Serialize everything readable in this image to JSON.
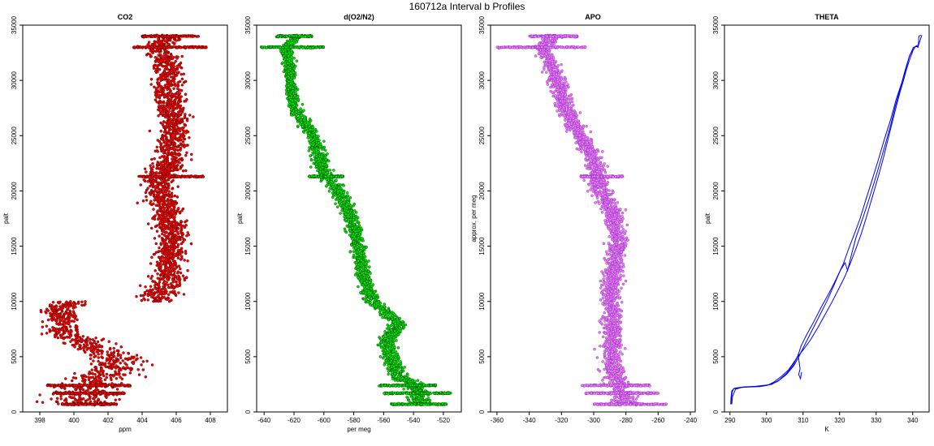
{
  "figure": {
    "title": "160712a   Interval b Profiles"
  },
  "chart_data": [
    {
      "type": "scatter",
      "title": "CO2",
      "xlabel": "ppm",
      "ylabel": "palt",
      "xlim": [
        397,
        409
      ],
      "ylim": [
        0,
        35000
      ],
      "xticks": [
        398,
        400,
        402,
        404,
        406,
        408
      ],
      "yticks": [
        0,
        5000,
        10000,
        15000,
        20000,
        25000,
        30000,
        35000
      ],
      "color": "#ff0000",
      "edge_color": "#5a0000",
      "series": [
        {
          "profile": [
            [
              400.2,
              700
            ],
            [
              400.5,
              1500
            ],
            [
              400.8,
              2200
            ],
            [
              401.5,
              3000
            ],
            [
              402.2,
              4000
            ],
            [
              402.5,
              5000
            ],
            [
              401.5,
              5500
            ],
            [
              400.5,
              6500
            ],
            [
              399.2,
              7200
            ],
            [
              399.5,
              8000
            ],
            [
              399.2,
              9200
            ],
            [
              399.8,
              10000
            ],
            [
              404.8,
              10000
            ],
            [
              405.5,
              12000
            ],
            [
              405.6,
              14000
            ],
            [
              405.8,
              16000
            ],
            [
              405.5,
              18000
            ],
            [
              405,
              20000
            ],
            [
              405.3,
              21300
            ],
            [
              405.5,
              22500
            ],
            [
              405.8,
              24500
            ],
            [
              405.9,
              26500
            ],
            [
              405.6,
              28500
            ],
            [
              405.5,
              30500
            ],
            [
              405.4,
              32000
            ],
            [
              405,
              33000
            ],
            [
              405.5,
              34000
            ]
          ],
          "spread": [
            [
              0,
              3.0
            ],
            [
              5000,
              2.0
            ],
            [
              8000,
              1.6
            ],
            [
              10000,
              1.4
            ],
            [
              15000,
              1.2
            ],
            [
              20000,
              1.3
            ],
            [
              25000,
              1.3
            ],
            [
              30000,
              1.2
            ],
            [
              34000,
              1.2
            ]
          ],
          "spikes": [
            {
              "y": 700,
              "x": [
                399.3,
                402.5
              ]
            },
            {
              "y": 1700,
              "x": [
                398.7,
                403.0
              ]
            },
            {
              "y": 2400,
              "x": [
                398.4,
                403.3
              ]
            },
            {
              "y": 21300,
              "x": [
                403.8,
                407.6
              ]
            },
            {
              "y": 33000,
              "x": [
                403.5,
                407.8
              ]
            },
            {
              "y": 34000,
              "x": [
                404.0,
                407.3
              ]
            }
          ]
        }
      ]
    },
    {
      "type": "scatter",
      "title": "d(O2/N2)",
      "xlabel": "per meg",
      "ylabel": "palt",
      "xlim": [
        -645,
        -508
      ],
      "ylim": [
        0,
        35000
      ],
      "xticks": [
        -640,
        -620,
        -600,
        -580,
        -560,
        -540,
        -520
      ],
      "yticks": [
        0,
        5000,
        10000,
        15000,
        20000,
        25000,
        30000,
        35000
      ],
      "color": "#00ee00",
      "edge_color": "#004d00",
      "series": [
        {
          "profile": [
            [
              -535,
              700
            ],
            [
              -537,
              1500
            ],
            [
              -540,
              2500
            ],
            [
              -552,
              3500
            ],
            [
              -555,
              5000
            ],
            [
              -558,
              6500
            ],
            [
              -550,
              8000
            ],
            [
              -568,
              10000
            ],
            [
              -574,
              12500
            ],
            [
              -577,
              15000
            ],
            [
              -583,
              18000
            ],
            [
              -590,
              20000
            ],
            [
              -600,
              21500
            ],
            [
              -603,
              23000
            ],
            [
              -607,
              25000
            ],
            [
              -620,
              27500
            ],
            [
              -622,
              29500
            ],
            [
              -623,
              31000
            ],
            [
              -625,
              33000
            ],
            [
              -618,
              34000
            ]
          ],
          "spread": [
            [
              0,
              10
            ],
            [
              5000,
              8
            ],
            [
              10000,
              7
            ],
            [
              15000,
              6
            ],
            [
              20000,
              7
            ],
            [
              25000,
              7
            ],
            [
              30000,
              5
            ],
            [
              34000,
              5
            ]
          ],
          "spikes": [
            {
              "y": 700,
              "x": [
                -555,
                -518
              ]
            },
            {
              "y": 1700,
              "x": [
                -560,
                -515
              ]
            },
            {
              "y": 2400,
              "x": [
                -563,
                -525
              ]
            },
            {
              "y": 21300,
              "x": [
                -610,
                -587
              ]
            },
            {
              "y": 33000,
              "x": [
                -642,
                -600
              ]
            },
            {
              "y": 34000,
              "x": [
                -632,
                -608
              ]
            }
          ]
        }
      ]
    },
    {
      "type": "scatter",
      "title": "APO",
      "xlabel": "",
      "ylabel": "approx. per meg",
      "xlim": [
        -364,
        -237
      ],
      "ylim": [
        0,
        35000
      ],
      "xticks": [
        -360,
        -340,
        -320,
        -300,
        -280,
        -260,
        -240
      ],
      "yticks": [
        0,
        5000,
        10000,
        15000,
        20000,
        25000,
        30000,
        35000
      ],
      "color": "#ee82ee",
      "edge_color": "#9932cc",
      "series": [
        {
          "profile": [
            [
              -280,
              700
            ],
            [
              -283,
              1500
            ],
            [
              -285,
              2500
            ],
            [
              -288,
              4000
            ],
            [
              -289,
              6000
            ],
            [
              -288,
              8000
            ],
            [
              -290,
              10000
            ],
            [
              -288,
              12500
            ],
            [
              -285,
              15000
            ],
            [
              -288,
              18000
            ],
            [
              -296,
              20000
            ],
            [
              -298,
              21300
            ],
            [
              -300,
              23000
            ],
            [
              -308,
              25000
            ],
            [
              -318,
              27500
            ],
            [
              -323,
              30000
            ],
            [
              -328,
              32000
            ],
            [
              -332,
              33000
            ],
            [
              -325,
              34000
            ]
          ],
          "spread": [
            [
              0,
              12
            ],
            [
              5000,
              9
            ],
            [
              10000,
              8
            ],
            [
              15000,
              8
            ],
            [
              20000,
              8
            ],
            [
              25000,
              8
            ],
            [
              30000,
              7
            ],
            [
              34000,
              7
            ]
          ],
          "spikes": [
            {
              "y": 700,
              "x": [
                -300,
                -255
              ]
            },
            {
              "y": 1700,
              "x": [
                -305,
                -260
              ]
            },
            {
              "y": 2400,
              "x": [
                -308,
                -265
              ]
            },
            {
              "y": 21300,
              "x": [
                -308,
                -282
              ]
            },
            {
              "y": 33000,
              "x": [
                -360,
                -305
              ]
            },
            {
              "y": 34000,
              "x": [
                -340,
                -310
              ]
            }
          ]
        }
      ]
    },
    {
      "type": "line",
      "title": "THETA",
      "xlabel": "K",
      "ylabel": "palt",
      "xlim": [
        288.5,
        344.5
      ],
      "ylim": [
        0,
        35000
      ],
      "xticks": [
        290,
        300,
        310,
        320,
        330,
        340
      ],
      "yticks": [
        0,
        5000,
        10000,
        15000,
        20000,
        25000,
        30000,
        35000
      ],
      "color": "#0000ee",
      "series": [
        {
          "x": [
            290.3,
            290.4,
            290.6,
            291,
            292.5,
            295,
            298,
            300.2,
            302,
            304,
            306,
            307.5,
            308.5,
            310,
            312,
            314,
            316,
            318,
            320,
            321.5,
            323,
            324.5,
            326,
            327.5,
            329,
            330.5,
            332,
            333.5,
            335,
            336.5,
            337.5,
            338.3,
            339.3,
            340.2,
            340.8,
            341.5,
            341.7,
            342.2
          ],
          "y": [
            700,
            1200,
            1800,
            2100,
            2200,
            2250,
            2300,
            2400,
            2700,
            3200,
            3800,
            4500,
            5000,
            5600,
            6500,
            7600,
            8800,
            10000,
            11300,
            12300,
            13500,
            14800,
            16200,
            17800,
            19500,
            21200,
            23000,
            25000,
            27000,
            28900,
            30000,
            31000,
            32000,
            32800,
            33100,
            33000,
            34000,
            34100
          ]
        },
        {
          "x": [
            290.2,
            290.3,
            290.5,
            291.2,
            293,
            296,
            299,
            301.5,
            303.5,
            305.5,
            307.2,
            308.6,
            309.5,
            311,
            313,
            315,
            317.2,
            319.2,
            321,
            322.3,
            323.8,
            325.6,
            327.2,
            328.8,
            330.5,
            332.2,
            334,
            335.5,
            337,
            338,
            339,
            340.2,
            341.5,
            342.5
          ],
          "y": [
            700,
            1300,
            1900,
            2150,
            2230,
            2280,
            2350,
            2500,
            2900,
            3500,
            4200,
            5100,
            6000,
            7000,
            8200,
            9500,
            10800,
            12100,
            13400,
            14600,
            15900,
            17500,
            19200,
            20900,
            22700,
            24600,
            26500,
            28300,
            29800,
            31000,
            32100,
            33000,
            33100,
            34100
          ]
        },
        {
          "x": [
            290.5,
            290.7,
            291.5,
            293.5,
            297,
            300.5,
            303,
            305.5,
            307.5,
            309,
            310.5,
            312.5,
            314.5,
            316.5,
            318.5,
            320.2,
            321.5,
            322.2,
            323.3,
            324.5,
            326,
            327.8,
            329.5,
            331,
            332.5,
            334,
            335.2,
            336.8,
            338.3,
            339.2,
            340.6,
            341.3
          ],
          "y": [
            700,
            1400,
            2050,
            2250,
            2320,
            2450,
            2750,
            3400,
            4200,
            5100,
            6100,
            7400,
            8700,
            10000,
            11500,
            12800,
            13500,
            12800,
            14300,
            15800,
            17200,
            19000,
            20800,
            22500,
            24200,
            26000,
            27600,
            29500,
            31200,
            32300,
            33000,
            33200
          ]
        },
        {
          "x": [
            308.6,
            308.9,
            309.2,
            308.8,
            309.3,
            309.6
          ],
          "y": [
            5200,
            4600,
            3900,
            3400,
            3000,
            3600
          ]
        }
      ]
    }
  ]
}
